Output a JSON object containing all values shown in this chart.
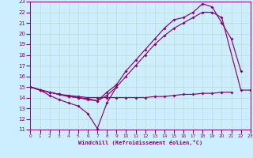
{
  "xlabel": "Windchill (Refroidissement éolien,°C)",
  "bg_color": "#cceeff",
  "grid_color": "#bbddcc",
  "line_color": "#880077",
  "xlim": [
    0,
    23
  ],
  "ylim": [
    11,
    23
  ],
  "xticks": [
    0,
    1,
    2,
    3,
    4,
    5,
    6,
    7,
    8,
    9,
    10,
    11,
    12,
    13,
    14,
    15,
    16,
    17,
    18,
    19,
    20,
    21,
    22,
    23
  ],
  "yticks": [
    11,
    12,
    13,
    14,
    15,
    16,
    17,
    18,
    19,
    20,
    21,
    22,
    23
  ],
  "series": [
    {
      "x": [
        0,
        1,
        2,
        3,
        4,
        5,
        6,
        7,
        8,
        9,
        10,
        11,
        12,
        13,
        14,
        15,
        16,
        17,
        18,
        19,
        20,
        21,
        22,
        23
      ],
      "y": [
        15.0,
        14.7,
        14.5,
        14.3,
        14.2,
        14.1,
        14.0,
        14.0,
        14.0,
        14.0,
        14.0,
        14.0,
        14.0,
        14.1,
        14.1,
        14.2,
        14.3,
        14.3,
        14.4,
        14.4,
        14.5,
        14.5,
        null,
        14.7
      ]
    },
    {
      "x": [
        0,
        1,
        2,
        3,
        4,
        5,
        6,
        7,
        8,
        9
      ],
      "y": [
        15.0,
        14.7,
        14.2,
        13.8,
        13.5,
        13.2,
        12.5,
        11.1,
        13.5,
        15.0
      ]
    },
    {
      "x": [
        0,
        1,
        2,
        3,
        4,
        5,
        6,
        7,
        8,
        9,
        10,
        11,
        12,
        13,
        14,
        15,
        16,
        17,
        18,
        19,
        20,
        21,
        22
      ],
      "y": [
        15.0,
        14.7,
        14.5,
        14.3,
        14.1,
        14.0,
        13.8,
        13.7,
        14.5,
        15.2,
        16.5,
        17.5,
        18.5,
        19.5,
        20.5,
        21.3,
        21.5,
        22.0,
        22.8,
        22.5,
        21.0,
        19.5,
        16.5
      ]
    },
    {
      "x": [
        0,
        2,
        3,
        4,
        5,
        6,
        7,
        8,
        9,
        10,
        11,
        12,
        13,
        14,
        15,
        16,
        17,
        18,
        19,
        20,
        22,
        23
      ],
      "y": [
        15.0,
        14.5,
        14.3,
        14.1,
        14.0,
        13.9,
        13.7,
        14.2,
        15.0,
        16.0,
        17.0,
        18.0,
        19.0,
        19.8,
        20.5,
        21.0,
        21.5,
        22.0,
        22.0,
        21.5,
        14.7,
        14.7
      ]
    }
  ]
}
